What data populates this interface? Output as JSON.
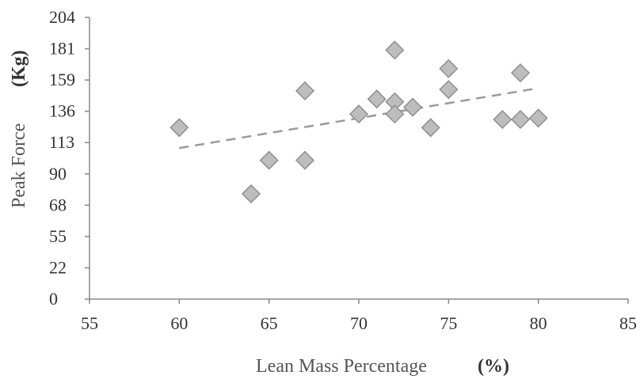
{
  "chart_data": {
    "type": "scatter",
    "xlabel": "Lean Mass Percentage",
    "xlabel_unit": "(%)",
    "ylabel": "Peak Force",
    "ylabel_unit": "(Kg)",
    "xlim": [
      55,
      85
    ],
    "x_ticks": [
      "55",
      "60",
      "65",
      "70",
      "75",
      "80",
      "85"
    ],
    "y_ticks": [
      "0",
      "22",
      "55",
      "68",
      "90",
      "113",
      "136",
      "159",
      "181",
      "204"
    ],
    "grid": false,
    "legend": "none",
    "marker_color": "#bdbdbd",
    "trendline_color": "#9a9a9a",
    "series": [
      {
        "points": [
          {
            "x": 60,
            "y": 124
          },
          {
            "x": 64,
            "y": 76
          },
          {
            "x": 65,
            "y": 100
          },
          {
            "x": 67,
            "y": 100
          },
          {
            "x": 67,
            "y": 151
          },
          {
            "x": 70,
            "y": 134
          },
          {
            "x": 71,
            "y": 145
          },
          {
            "x": 72,
            "y": 180
          },
          {
            "x": 72,
            "y": 143
          },
          {
            "x": 72,
            "y": 134
          },
          {
            "x": 73,
            "y": 139
          },
          {
            "x": 74,
            "y": 124
          },
          {
            "x": 75,
            "y": 167
          },
          {
            "x": 75,
            "y": 152
          },
          {
            "x": 78,
            "y": 130
          },
          {
            "x": 79,
            "y": 164
          },
          {
            "x": 79,
            "y": 130
          },
          {
            "x": 80,
            "y": 131
          }
        ]
      }
    ],
    "trendline": {
      "x_start": 60,
      "y_start": 109,
      "x_end": 80,
      "y_end": 153
    }
  }
}
